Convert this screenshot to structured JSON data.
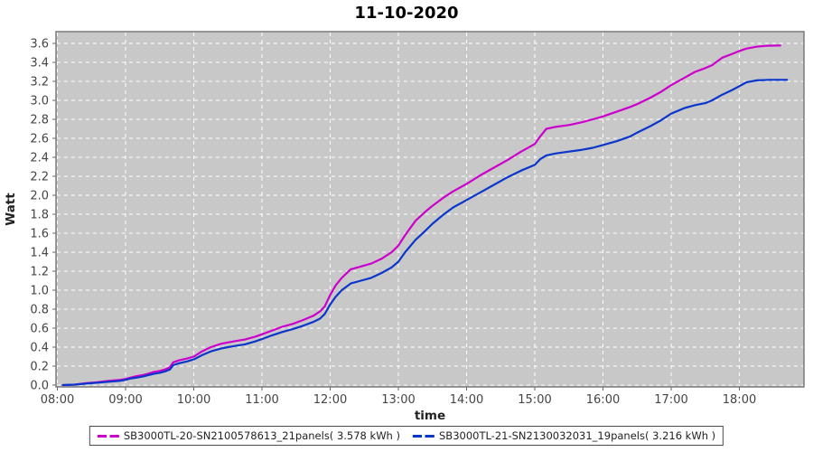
{
  "page": {
    "title": "11-10-2020"
  },
  "colors": {
    "page_bg": "#ffffff",
    "plot_bg": "#c8c8c8",
    "grid": "#ffffff",
    "plot_border": "#7a7a7a",
    "tick_mark": "#666666",
    "tick_label": "#444444",
    "axis_label": "#222222",
    "title": "#000000",
    "legend_border": "#4a4a4a",
    "series1": "#cc00cc",
    "series2": "#0a36cc"
  },
  "chart_data": {
    "type": "line",
    "title": "11-10-2020",
    "xlabel": "time",
    "ylabel": "Watt",
    "grid": true,
    "legend_position": "bottom",
    "x_ticks": [
      "08:00",
      "09:00",
      "10:00",
      "11:00",
      "12:00",
      "13:00",
      "14:00",
      "15:00",
      "16:00",
      "17:00",
      "18:00"
    ],
    "x_tick_hours": [
      8,
      9,
      10,
      11,
      12,
      13,
      14,
      15,
      16,
      17,
      18
    ],
    "xlim_hours": [
      7.98,
      18.95
    ],
    "y_ticks": [
      "0.0",
      "0.2",
      "0.4",
      "0.6",
      "0.8",
      "1.0",
      "1.2",
      "1.4",
      "1.6",
      "1.8",
      "2.0",
      "2.2",
      "2.4",
      "2.6",
      "2.8",
      "3.0",
      "3.2",
      "3.4",
      "3.6"
    ],
    "y_tick_values": [
      0.0,
      0.2,
      0.4,
      0.6,
      0.8,
      1.0,
      1.2,
      1.4,
      1.6,
      1.8,
      2.0,
      2.2,
      2.4,
      2.6,
      2.8,
      3.0,
      3.2,
      3.4,
      3.6
    ],
    "ylim": [
      0,
      3.74
    ],
    "series": [
      {
        "name": "SB3000TL-20-SN2100578613_21panels( 3.578 kWh )",
        "color": "#cc00cc",
        "total_kwh": 3.578,
        "points": [
          [
            8.08,
            0.0
          ],
          [
            8.25,
            0.005
          ],
          [
            8.42,
            0.02
          ],
          [
            8.58,
            0.03
          ],
          [
            8.75,
            0.045
          ],
          [
            8.92,
            0.055
          ],
          [
            9.0,
            0.065
          ],
          [
            9.08,
            0.08
          ],
          [
            9.17,
            0.095
          ],
          [
            9.25,
            0.105
          ],
          [
            9.33,
            0.12
          ],
          [
            9.42,
            0.14
          ],
          [
            9.5,
            0.15
          ],
          [
            9.58,
            0.165
          ],
          [
            9.65,
            0.19
          ],
          [
            9.7,
            0.24
          ],
          [
            9.78,
            0.26
          ],
          [
            9.9,
            0.28
          ],
          [
            10.0,
            0.3
          ],
          [
            10.12,
            0.355
          ],
          [
            10.25,
            0.4
          ],
          [
            10.4,
            0.435
          ],
          [
            10.5,
            0.45
          ],
          [
            10.62,
            0.465
          ],
          [
            10.75,
            0.48
          ],
          [
            10.9,
            0.51
          ],
          [
            11.0,
            0.535
          ],
          [
            11.15,
            0.575
          ],
          [
            11.3,
            0.615
          ],
          [
            11.45,
            0.645
          ],
          [
            11.6,
            0.685
          ],
          [
            11.75,
            0.73
          ],
          [
            11.85,
            0.775
          ],
          [
            11.92,
            0.83
          ],
          [
            12.0,
            0.95
          ],
          [
            12.08,
            1.05
          ],
          [
            12.17,
            1.13
          ],
          [
            12.3,
            1.22
          ],
          [
            12.45,
            1.25
          ],
          [
            12.6,
            1.28
          ],
          [
            12.75,
            1.33
          ],
          [
            12.9,
            1.4
          ],
          [
            13.0,
            1.47
          ],
          [
            13.1,
            1.58
          ],
          [
            13.25,
            1.73
          ],
          [
            13.4,
            1.83
          ],
          [
            13.5,
            1.89
          ],
          [
            13.65,
            1.97
          ],
          [
            13.8,
            2.04
          ],
          [
            14.0,
            2.12
          ],
          [
            14.2,
            2.21
          ],
          [
            14.4,
            2.29
          ],
          [
            14.6,
            2.37
          ],
          [
            14.8,
            2.46
          ],
          [
            15.0,
            2.54
          ],
          [
            15.08,
            2.62
          ],
          [
            15.17,
            2.7
          ],
          [
            15.3,
            2.72
          ],
          [
            15.5,
            2.74
          ],
          [
            15.7,
            2.77
          ],
          [
            15.85,
            2.8
          ],
          [
            16.0,
            2.83
          ],
          [
            16.2,
            2.88
          ],
          [
            16.4,
            2.93
          ],
          [
            16.5,
            2.96
          ],
          [
            16.7,
            3.03
          ],
          [
            16.85,
            3.09
          ],
          [
            17.0,
            3.16
          ],
          [
            17.2,
            3.24
          ],
          [
            17.35,
            3.3
          ],
          [
            17.5,
            3.34
          ],
          [
            17.6,
            3.37
          ],
          [
            17.75,
            3.45
          ],
          [
            17.9,
            3.49
          ],
          [
            18.0,
            3.52
          ],
          [
            18.1,
            3.545
          ],
          [
            18.25,
            3.565
          ],
          [
            18.4,
            3.575
          ],
          [
            18.6,
            3.578
          ]
        ]
      },
      {
        "name": "SB3000TL-21-SN2130032031_19panels( 3.216 kWh )",
        "color": "#0a36cc",
        "total_kwh": 3.216,
        "points": [
          [
            8.08,
            0.0
          ],
          [
            8.25,
            0.005
          ],
          [
            8.42,
            0.015
          ],
          [
            8.58,
            0.025
          ],
          [
            8.75,
            0.035
          ],
          [
            8.92,
            0.045
          ],
          [
            9.0,
            0.055
          ],
          [
            9.08,
            0.07
          ],
          [
            9.17,
            0.08
          ],
          [
            9.25,
            0.09
          ],
          [
            9.33,
            0.105
          ],
          [
            9.42,
            0.12
          ],
          [
            9.5,
            0.13
          ],
          [
            9.58,
            0.145
          ],
          [
            9.65,
            0.165
          ],
          [
            9.7,
            0.21
          ],
          [
            9.78,
            0.23
          ],
          [
            9.9,
            0.25
          ],
          [
            10.0,
            0.27
          ],
          [
            10.12,
            0.315
          ],
          [
            10.25,
            0.355
          ],
          [
            10.4,
            0.385
          ],
          [
            10.5,
            0.4
          ],
          [
            10.62,
            0.415
          ],
          [
            10.75,
            0.43
          ],
          [
            10.9,
            0.46
          ],
          [
            11.0,
            0.485
          ],
          [
            11.15,
            0.525
          ],
          [
            11.3,
            0.56
          ],
          [
            11.45,
            0.59
          ],
          [
            11.6,
            0.625
          ],
          [
            11.75,
            0.665
          ],
          [
            11.85,
            0.7
          ],
          [
            11.92,
            0.75
          ],
          [
            12.0,
            0.85
          ],
          [
            12.08,
            0.93
          ],
          [
            12.17,
            1.0
          ],
          [
            12.3,
            1.07
          ],
          [
            12.45,
            1.1
          ],
          [
            12.6,
            1.13
          ],
          [
            12.75,
            1.18
          ],
          [
            12.9,
            1.24
          ],
          [
            13.0,
            1.3
          ],
          [
            13.1,
            1.4
          ],
          [
            13.25,
            1.53
          ],
          [
            13.4,
            1.63
          ],
          [
            13.5,
            1.7
          ],
          [
            13.65,
            1.79
          ],
          [
            13.8,
            1.87
          ],
          [
            14.0,
            1.95
          ],
          [
            14.2,
            2.03
          ],
          [
            14.4,
            2.11
          ],
          [
            14.6,
            2.19
          ],
          [
            14.8,
            2.26
          ],
          [
            15.0,
            2.32
          ],
          [
            15.08,
            2.38
          ],
          [
            15.17,
            2.42
          ],
          [
            15.3,
            2.44
          ],
          [
            15.5,
            2.46
          ],
          [
            15.7,
            2.48
          ],
          [
            15.85,
            2.5
          ],
          [
            16.0,
            2.53
          ],
          [
            16.2,
            2.57
          ],
          [
            16.4,
            2.62
          ],
          [
            16.5,
            2.66
          ],
          [
            16.7,
            2.73
          ],
          [
            16.85,
            2.79
          ],
          [
            17.0,
            2.86
          ],
          [
            17.2,
            2.92
          ],
          [
            17.35,
            2.95
          ],
          [
            17.5,
            2.97
          ],
          [
            17.6,
            3.0
          ],
          [
            17.75,
            3.06
          ],
          [
            17.9,
            3.11
          ],
          [
            18.0,
            3.15
          ],
          [
            18.1,
            3.19
          ],
          [
            18.25,
            3.21
          ],
          [
            18.45,
            3.216
          ],
          [
            18.7,
            3.216
          ]
        ]
      }
    ]
  }
}
